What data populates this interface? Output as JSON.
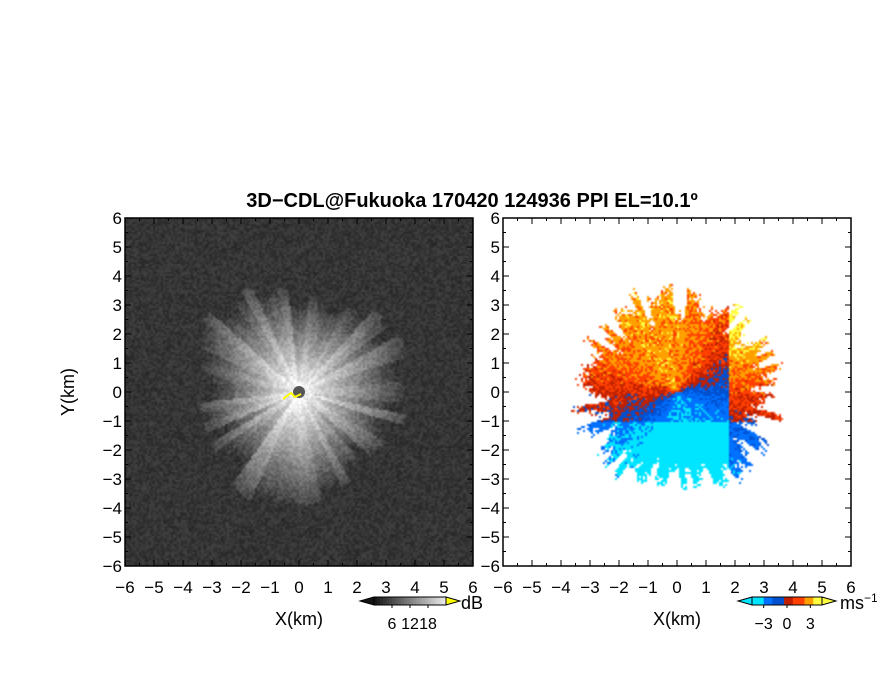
{
  "title": "3D−CDL@Fukuoka 170420 124936 PPI EL=10.1º",
  "chart_data": [
    {
      "type": "heatmap",
      "panel": "reflectivity",
      "xlabel": "X(km)",
      "ylabel": "Y(km)",
      "xlim": [
        -6,
        6
      ],
      "ylim": [
        -6,
        6
      ],
      "xticks": [
        "−6",
        "−5",
        "−4",
        "−3",
        "−2",
        "−1",
        "0",
        "1",
        "2",
        "3",
        "4",
        "5",
        "6"
      ],
      "yticks": [
        "−6",
        "−5",
        "−4",
        "−3",
        "−2",
        "−1",
        "0",
        "1",
        "2",
        "3",
        "4",
        "5",
        "6"
      ],
      "colorbar": {
        "unit": "dB",
        "ticks": [
          "6",
          "12",
          "18"
        ],
        "tick_values": [
          6,
          12,
          18
        ],
        "range": [
          0,
          24
        ],
        "palette": "grayscale",
        "over_color": "#ffff00"
      }
    },
    {
      "type": "heatmap",
      "panel": "doppler_velocity",
      "xlabel": "X(km)",
      "ylabel": "",
      "xlim": [
        -6,
        6
      ],
      "ylim": [
        -6,
        6
      ],
      "xticks": [
        "−6",
        "−5",
        "−4",
        "−3",
        "−2",
        "−1",
        "0",
        "1",
        "2",
        "3",
        "4",
        "5",
        "6"
      ],
      "yticks": [
        "−6",
        "−5",
        "−4",
        "−3",
        "−2",
        "−1",
        "0",
        "1",
        "2",
        "3",
        "4",
        "5",
        "6"
      ],
      "colorbar": {
        "unit": "ms",
        "unit_exp": "−1",
        "ticks": [
          "−3",
          "0",
          "3"
        ],
        "tick_values": [
          -3,
          0,
          3
        ],
        "range": [
          -4.5,
          4.5
        ],
        "palette": "diverging",
        "colors": [
          "#00e5ff",
          "#0070ff",
          "#0050d0",
          "#c02000",
          "#ff4000",
          "#ffa000",
          "#ffff40"
        ]
      }
    }
  ]
}
